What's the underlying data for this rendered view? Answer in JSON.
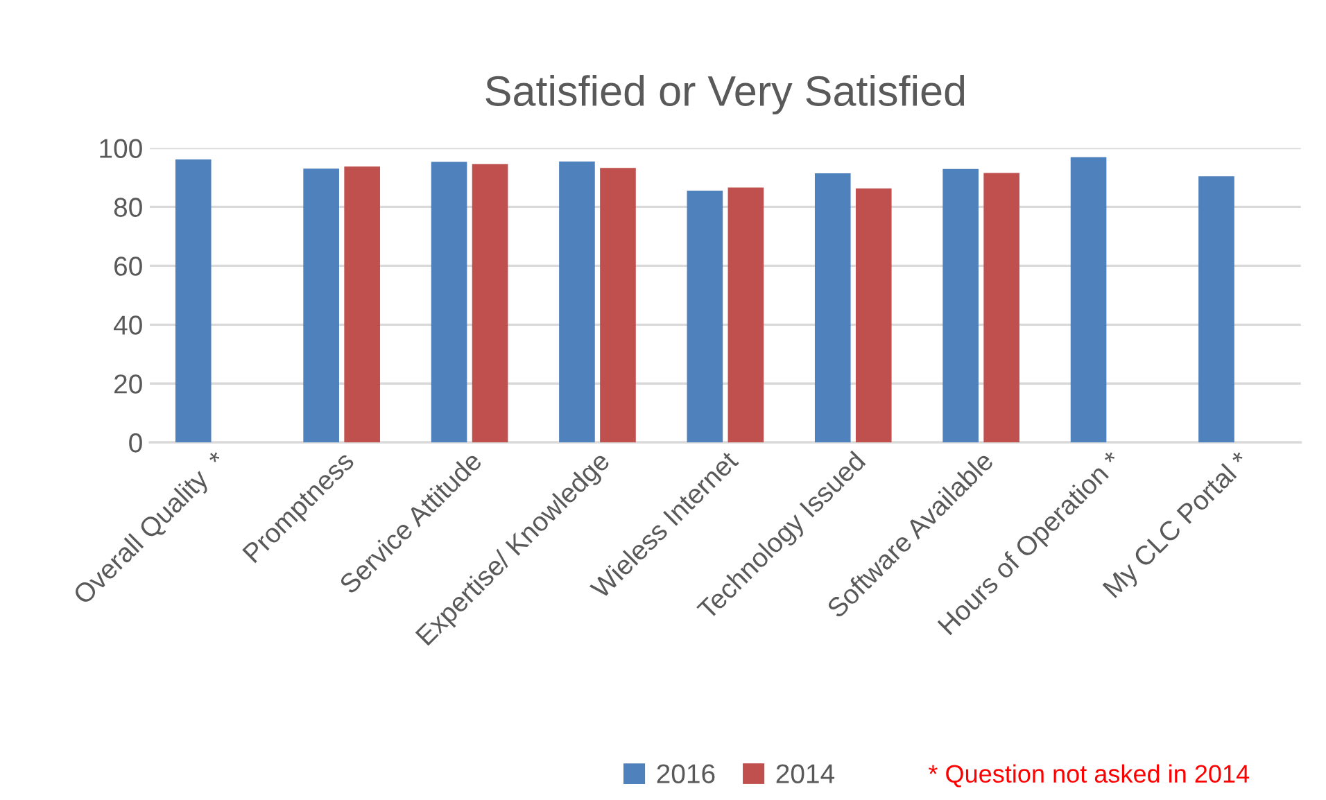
{
  "chart_data": {
    "type": "bar",
    "title": "Satisfied or Very Satisfied",
    "categories": [
      "Overall Quality  *",
      "Promptness",
      "Service Attitude",
      "Expertise/ Knowledge",
      "Wieless Internet",
      "Technology Issued",
      "Software Available",
      "Hours of Operation *",
      "My CLC Portal *"
    ],
    "series": [
      {
        "name": "2016",
        "color": "#4f81bd",
        "values": [
          96.1,
          93.0,
          95.3,
          95.4,
          85.5,
          91.4,
          92.9,
          96.9,
          90.4
        ]
      },
      {
        "name": "2014",
        "color": "#c0504d",
        "values": [
          null,
          93.7,
          94.5,
          93.2,
          86.6,
          86.3,
          91.5,
          null,
          null
        ]
      }
    ],
    "ylim": [
      0,
      100
    ],
    "yticks": [
      0,
      20,
      40,
      60,
      80,
      100
    ],
    "grid": "y",
    "legend": "bottom",
    "annotations": [
      "* Question not asked in 2014"
    ]
  }
}
